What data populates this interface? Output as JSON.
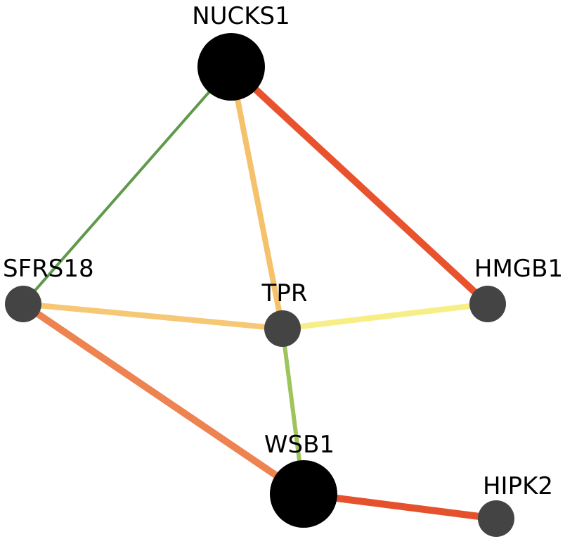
{
  "graph": {
    "nodes": [
      {
        "id": "NUCKS1",
        "label": "NUCKS1",
        "color": "#000000",
        "size": "large"
      },
      {
        "id": "SFRS18",
        "label": "SFRS18",
        "color": "#444444",
        "size": "small"
      },
      {
        "id": "TPR",
        "label": "TPR",
        "color": "#444444",
        "size": "small"
      },
      {
        "id": "HMGB1",
        "label": "HMGB1",
        "color": "#444444",
        "size": "small"
      },
      {
        "id": "WSB1",
        "label": "WSB1",
        "color": "#000000",
        "size": "large"
      },
      {
        "id": "HIPK2",
        "label": "HIPK2",
        "color": "#444444",
        "size": "small"
      }
    ],
    "edges": [
      {
        "source": "NUCKS1",
        "target": "SFRS18",
        "color": "#5e9a4a"
      },
      {
        "source": "NUCKS1",
        "target": "TPR",
        "color": "#f5c26b"
      },
      {
        "source": "NUCKS1",
        "target": "HMGB1",
        "color": "#e8532e"
      },
      {
        "source": "SFRS18",
        "target": "TPR",
        "color": "#f6c775"
      },
      {
        "source": "TPR",
        "target": "HMGB1",
        "color": "#f7ee85"
      },
      {
        "source": "SFRS18",
        "target": "WSB1",
        "color": "#ed8350"
      },
      {
        "source": "TPR",
        "target": "WSB1",
        "color": "#9fc45c"
      },
      {
        "source": "WSB1",
        "target": "HIPK2",
        "color": "#e5512d"
      }
    ]
  }
}
